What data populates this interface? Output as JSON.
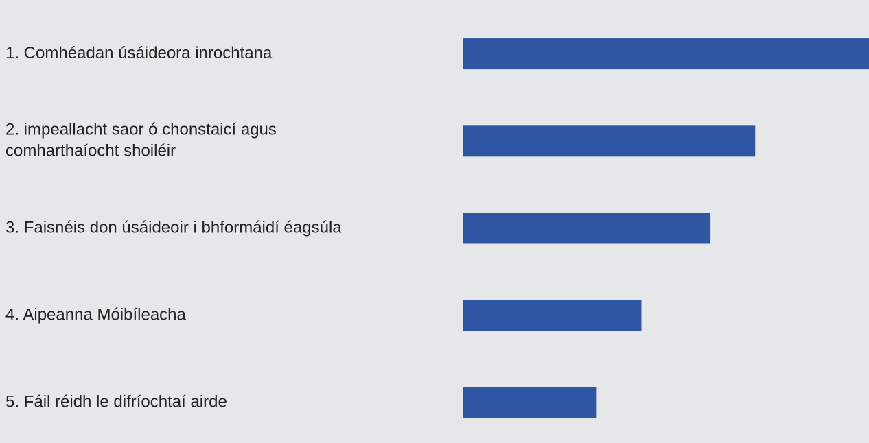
{
  "chart_data": {
    "type": "barh",
    "categories": [
      "1. Comhéadan úsáideora inrochtana",
      "2. impeallacht saor ó chonstaicí agus\ncomharthaíocht shoiléir",
      "3. Faisnéis don úsáideoir i bhformáidí éagsúla",
      "4. Aipeanna Móibíleacha",
      "5. Fáil réidh le difríochtaí airde"
    ],
    "values": [
      100,
      72,
      61,
      44,
      33
    ],
    "color": "#2e56a3",
    "xlim": [
      0,
      100
    ]
  }
}
